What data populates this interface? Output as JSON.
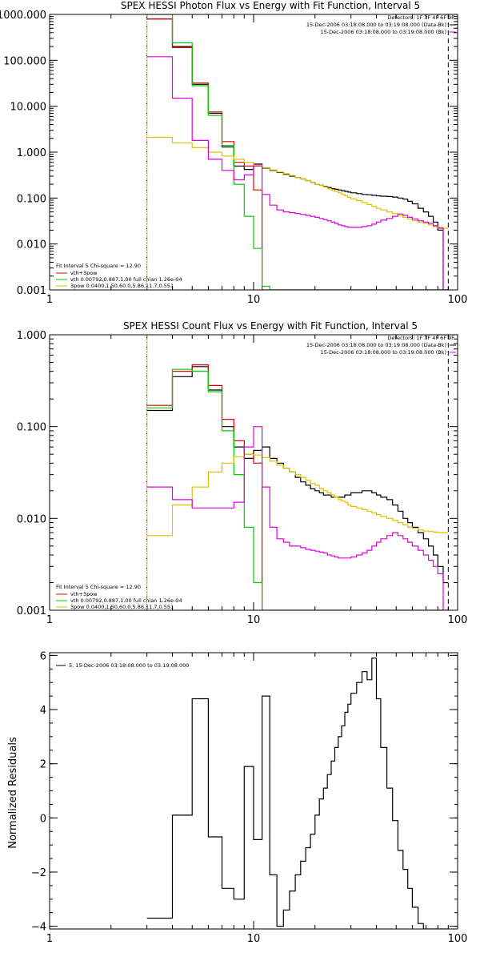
{
  "chart_data": [
    {
      "type": "line",
      "title": "SPEX HESSI Photon Flux vs Energy with Fit Function, Interval 5",
      "xlabel": "",
      "ylabel": "",
      "xscale": "log",
      "yscale": "log",
      "xlim": [
        1,
        100
      ],
      "ylim": [
        0.001,
        1000
      ],
      "xticks": [
        1,
        10,
        100
      ],
      "xtick_labels": [
        "1",
        "10",
        "100"
      ],
      "yticks": [
        0.001,
        0.01,
        0.1,
        1,
        10,
        100,
        1000
      ],
      "ytick_labels": [
        "0.001",
        "0.010",
        "0.100",
        "1.000",
        "10.000",
        "100.000",
        "1000.000"
      ],
      "info_lines": [
        "Detectors: 1F 3F 4F 6F 9F",
        "15-Dec-2006 03:18:08.000 to 03:19:08.000 (Data-Bk)",
        "15-Dec-2006 03:18:08.000 to 03:19:08.000 (Bk)"
      ],
      "legend_head": "Fit Interval  5    Chi-square = 12.90",
      "vlines": [
        {
          "x": 3.0,
          "style": "dotted",
          "color": "#000000"
        },
        {
          "x": 3.0,
          "style": "solid",
          "color": "#e0a000"
        },
        {
          "x": 90,
          "style": "dashed",
          "color": "#000000"
        }
      ],
      "edges": [
        3,
        4,
        5,
        6,
        7,
        8,
        9,
        10,
        11,
        12,
        13,
        14,
        15,
        16,
        17,
        18,
        19,
        20,
        21,
        22,
        23,
        24,
        25,
        26,
        27,
        28,
        29,
        30,
        32,
        34,
        36,
        38,
        40,
        42,
        45,
        48,
        51,
        54,
        57,
        60,
        64,
        68,
        72,
        76,
        80,
        85,
        90
      ],
      "series": [
        {
          "name": "",
          "color": "#000000",
          "values": [
            800,
            200,
            30,
            7,
            1.3,
            0.5,
            0.42,
            0.55,
            0.45,
            0.4,
            0.36,
            0.33,
            0.3,
            0.28,
            0.26,
            0.24,
            0.22,
            0.2,
            0.19,
            0.18,
            0.17,
            0.16,
            0.155,
            0.15,
            0.145,
            0.14,
            0.135,
            0.13,
            0.125,
            0.12,
            0.118,
            0.115,
            0.112,
            0.11,
            0.108,
            0.105,
            0.1,
            0.095,
            0.085,
            0.075,
            0.06,
            0.05,
            0.04,
            0.03,
            0.02,
            0.001
          ]
        },
        {
          "name": "vth+3pow",
          "color": "#dd0000",
          "values": [
            800,
            190,
            32,
            7.5,
            1.7,
            0.6,
            0.5,
            0.15,
            0.001,
            0.001,
            0.001,
            0.001,
            0.001,
            0.001,
            0.001,
            0.001,
            0.001,
            0.001,
            0.001,
            0.001,
            0.001,
            0.001,
            0.001,
            0.001,
            0.001,
            0.001,
            0.001,
            0.001,
            0.001,
            0.001,
            0.001,
            0.001,
            0.001,
            0.001,
            0.001,
            0.001,
            0.001,
            0.001,
            0.001,
            0.001,
            0.001,
            0.001,
            0.001,
            0.001,
            0.001,
            0.001
          ]
        },
        {
          "name": "vth 0.00792,0.887,1.00   full chian 1.26e-04",
          "color": "#00cc00",
          "values": [
            1000,
            240,
            28,
            6.3,
            1.4,
            0.2,
            0.04,
            0.008,
            0.0012,
            0.001,
            0.001,
            0.001,
            0.001,
            0.001,
            0.001,
            0.001,
            0.001,
            0.001,
            0.001,
            0.001,
            0.001,
            0.001,
            0.001,
            0.001,
            0.001,
            0.001,
            0.001,
            0.001,
            0.001,
            0.001,
            0.001,
            0.001,
            0.001,
            0.001,
            0.001,
            0.001,
            0.001,
            0.001,
            0.001,
            0.001,
            0.001,
            0.001,
            0.001,
            0.001,
            0.001,
            0.001
          ]
        },
        {
          "name": "3pow 0.0400,1.50,60.0,5.86,11.7,0.551",
          "color": "#e0c000",
          "values": [
            2.1,
            1.6,
            1.25,
            1.0,
            0.82,
            0.7,
            0.6,
            0.52,
            0.46,
            0.41,
            0.37,
            0.34,
            0.31,
            0.28,
            0.26,
            0.24,
            0.22,
            0.2,
            0.19,
            0.175,
            0.16,
            0.15,
            0.14,
            0.13,
            0.12,
            0.112,
            0.104,
            0.096,
            0.088,
            0.08,
            0.072,
            0.066,
            0.06,
            0.055,
            0.05,
            0.046,
            0.042,
            0.038,
            0.035,
            0.032,
            0.03,
            0.028,
            0.026,
            0.024,
            0.023,
            0.022
          ]
        },
        {
          "name": "",
          "color": "#dd00dd",
          "values": [
            120,
            15,
            1.8,
            0.7,
            0.4,
            0.25,
            0.32,
            0.5,
            0.12,
            0.07,
            0.055,
            0.05,
            0.048,
            0.046,
            0.044,
            0.042,
            0.04,
            0.038,
            0.036,
            0.034,
            0.032,
            0.03,
            0.028,
            0.026,
            0.025,
            0.024,
            0.023,
            0.023,
            0.023,
            0.024,
            0.025,
            0.027,
            0.03,
            0.033,
            0.036,
            0.04,
            0.045,
            0.042,
            0.038,
            0.035,
            0.032,
            0.03,
            0.028,
            0.025,
            0.022,
            0.001
          ]
        }
      ]
    },
    {
      "type": "line",
      "title": "SPEX HESSI Count Flux vs Energy with Fit Function, Interval 5",
      "xlabel": "",
      "ylabel": "",
      "xscale": "log",
      "yscale": "log",
      "xlim": [
        1,
        100
      ],
      "ylim": [
        0.001,
        1
      ],
      "xticks": [
        1,
        10,
        100
      ],
      "xtick_labels": [
        "1",
        "10",
        "100"
      ],
      "yticks": [
        0.001,
        0.01,
        0.1,
        1
      ],
      "ytick_labels": [
        "0.001",
        "0.010",
        "0.100",
        "1.000"
      ],
      "info_lines": [
        "Detectors: 1F 3F 4F 6F 9F",
        "15-Dec-2006 03:18:08.000 to 03:19:08.000 (Data-Bk)",
        "15-Dec-2006 03:18:08.000 to 03:19:08.000 (Bk)"
      ],
      "legend_head": "Fit Interval  5    Chi-square = 12.90",
      "vlines": [
        {
          "x": 3.0,
          "style": "dotted",
          "color": "#000000"
        },
        {
          "x": 3.0,
          "style": "solid",
          "color": "#e0a000"
        },
        {
          "x": 90,
          "style": "dashed",
          "color": "#000000"
        }
      ],
      "edges": [
        3,
        4,
        5,
        6,
        7,
        8,
        9,
        10,
        11,
        12,
        13,
        14,
        15,
        16,
        17,
        18,
        19,
        20,
        21,
        22,
        23,
        24,
        25,
        26,
        27,
        28,
        29,
        30,
        32,
        34,
        36,
        38,
        40,
        42,
        45,
        48,
        51,
        54,
        57,
        60,
        64,
        68,
        72,
        76,
        80,
        85,
        90
      ],
      "series": [
        {
          "name": "",
          "color": "#000000",
          "values": [
            0.15,
            0.35,
            0.45,
            0.25,
            0.1,
            0.06,
            0.045,
            0.055,
            0.06,
            0.045,
            0.04,
            0.035,
            0.032,
            0.028,
            0.025,
            0.023,
            0.021,
            0.02,
            0.019,
            0.018,
            0.018,
            0.017,
            0.017,
            0.017,
            0.017,
            0.018,
            0.018,
            0.019,
            0.019,
            0.02,
            0.02,
            0.019,
            0.018,
            0.017,
            0.016,
            0.014,
            0.012,
            0.01,
            0.009,
            0.008,
            0.007,
            0.006,
            0.005,
            0.004,
            0.003,
            0.002
          ]
        },
        {
          "name": "vth+3pow",
          "color": "#dd0000",
          "values": [
            0.17,
            0.4,
            0.47,
            0.28,
            0.12,
            0.07,
            0.05,
            0.04,
            0.001,
            0.001,
            0.001,
            0.001,
            0.001,
            0.001,
            0.001,
            0.001,
            0.001,
            0.001,
            0.001,
            0.001,
            0.001,
            0.001,
            0.001,
            0.001,
            0.001,
            0.001,
            0.001,
            0.001,
            0.001,
            0.001,
            0.001,
            0.001,
            0.001,
            0.001,
            0.001,
            0.001,
            0.001,
            0.001,
            0.001,
            0.001,
            0.001,
            0.001,
            0.001,
            0.001,
            0.001,
            0.001
          ]
        },
        {
          "name": "vth 0.00792,0.887,1.00   full chian 1.26e-04",
          "color": "#00cc00",
          "values": [
            0.16,
            0.42,
            0.4,
            0.24,
            0.09,
            0.03,
            0.008,
            0.002,
            0.0008,
            0.0008,
            0.0008,
            0.0008,
            0.0008,
            0.0008,
            0.0008,
            0.0008,
            0.0008,
            0.0008,
            0.0008,
            0.0008,
            0.0008,
            0.0008,
            0.0008,
            0.0008,
            0.0008,
            0.0008,
            0.0008,
            0.0008,
            0.0008,
            0.0008,
            0.0008,
            0.0008,
            0.0008,
            0.0008,
            0.0008,
            0.0008,
            0.0008,
            0.0008,
            0.0008,
            0.0008,
            0.0008,
            0.0008,
            0.0008,
            0.0008,
            0.0008,
            0.0008
          ]
        },
        {
          "name": "3pow 0.0400,1.50,60.0,5.86,11.7,0.551",
          "color": "#e0c000",
          "values": [
            0.0065,
            0.014,
            0.022,
            0.032,
            0.04,
            0.047,
            0.05,
            0.049,
            0.046,
            0.042,
            0.038,
            0.035,
            0.032,
            0.03,
            0.028,
            0.026,
            0.024,
            0.023,
            0.021,
            0.02,
            0.019,
            0.018,
            0.017,
            0.016,
            0.0155,
            0.015,
            0.014,
            0.0135,
            0.013,
            0.0125,
            0.012,
            0.0115,
            0.011,
            0.0105,
            0.01,
            0.0095,
            0.009,
            0.0085,
            0.008,
            0.0078,
            0.0075,
            0.0073,
            0.0072,
            0.0071,
            0.007,
            0.007
          ]
        },
        {
          "name": "",
          "color": "#dd00dd",
          "values": [
            0.022,
            0.016,
            0.013,
            0.013,
            0.013,
            0.015,
            0.06,
            0.1,
            0.022,
            0.008,
            0.006,
            0.0055,
            0.005,
            0.005,
            0.0048,
            0.0046,
            0.0045,
            0.0044,
            0.0043,
            0.0042,
            0.004,
            0.0039,
            0.0038,
            0.0037,
            0.0037,
            0.0037,
            0.0037,
            0.0038,
            0.004,
            0.0042,
            0.0045,
            0.005,
            0.0055,
            0.006,
            0.0065,
            0.007,
            0.0065,
            0.006,
            0.0055,
            0.005,
            0.0045,
            0.004,
            0.0035,
            0.003,
            0.0025,
            0.001
          ]
        }
      ]
    },
    {
      "type": "line",
      "title": "",
      "xlabel": "",
      "ylabel": "Normalized Residuals",
      "xscale": "log",
      "yscale": "linear",
      "xlim": [
        1,
        100
      ],
      "ylim": [
        -4.1,
        6.1
      ],
      "xticks": [
        1,
        10,
        100
      ],
      "xtick_labels": [
        "1",
        "10",
        "100"
      ],
      "yticks": [
        -4,
        -2,
        0,
        2,
        4,
        6
      ],
      "ytick_labels": [
        "−4",
        "−2",
        "0",
        "2",
        "4",
        "6"
      ],
      "legend_items": [
        "5, 15-Dec-2006 03:18:08.000 to 03:19:08.000"
      ],
      "edges": [
        3,
        4,
        5,
        6,
        7,
        8,
        9,
        10,
        11,
        12,
        13,
        14,
        15,
        16,
        17,
        18,
        19,
        20,
        21,
        22,
        23,
        24,
        25,
        26,
        27,
        28,
        29,
        30,
        32,
        34,
        36,
        38,
        40,
        42,
        45,
        48,
        51,
        54,
        57,
        60,
        64,
        68,
        72,
        76,
        80,
        85,
        90
      ],
      "series": [
        {
          "name": "5, 15-Dec-2006 03:18:08.000 to 03:19:08.000",
          "color": "#000000",
          "values": [
            -3.7,
            0.1,
            4.4,
            -0.7,
            -2.6,
            -3.0,
            1.9,
            -0.8,
            4.5,
            -2.1,
            -4.0,
            -3.4,
            -2.7,
            -2.1,
            -1.6,
            -1.1,
            -0.6,
            0.1,
            0.7,
            1.1,
            1.6,
            2.1,
            2.6,
            3.0,
            3.4,
            3.9,
            4.2,
            4.6,
            5.0,
            5.4,
            5.1,
            5.9,
            4.4,
            2.6,
            1.1,
            -0.1,
            -1.2,
            -1.9,
            -2.6,
            -3.3,
            -3.9,
            -4.1,
            -4.1,
            -4.1,
            -4.1,
            -4.1
          ]
        }
      ]
    }
  ]
}
